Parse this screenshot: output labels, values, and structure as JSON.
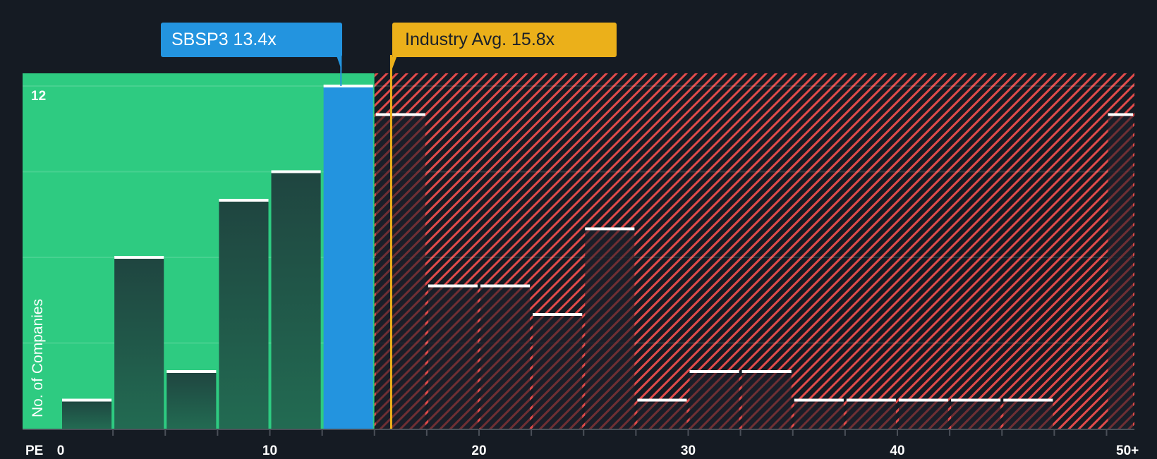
{
  "chart_data": {
    "type": "bar",
    "title": "",
    "xlabel": "PE",
    "ylabel": "No. of Companies",
    "ylim": [
      0,
      12
    ],
    "y_ticks_shown": [
      12
    ],
    "gridlines_every": 3,
    "x_tick_labels": [
      "0",
      "10",
      "20",
      "30",
      "40",
      "50+"
    ],
    "bin_width": 2.5,
    "bins": [
      {
        "from": 0,
        "to": 2.5,
        "count": 1
      },
      {
        "from": 2.5,
        "to": 5,
        "count": 6
      },
      {
        "from": 5,
        "to": 7.5,
        "count": 2
      },
      {
        "from": 7.5,
        "to": 10,
        "count": 8
      },
      {
        "from": 10,
        "to": 12.5,
        "count": 9
      },
      {
        "from": 12.5,
        "to": 15,
        "count": 12,
        "highlight": true
      },
      {
        "from": 15,
        "to": 17.5,
        "count": 11
      },
      {
        "from": 17.5,
        "to": 20,
        "count": 5
      },
      {
        "from": 20,
        "to": 22.5,
        "count": 5
      },
      {
        "from": 22.5,
        "to": 25,
        "count": 4
      },
      {
        "from": 25,
        "to": 27.5,
        "count": 7
      },
      {
        "from": 27.5,
        "to": 30,
        "count": 1
      },
      {
        "from": 30,
        "to": 32.5,
        "count": 2
      },
      {
        "from": 32.5,
        "to": 35,
        "count": 2
      },
      {
        "from": 35,
        "to": 37.5,
        "count": 1
      },
      {
        "from": 37.5,
        "to": 40,
        "count": 1
      },
      {
        "from": 40,
        "to": 42.5,
        "count": 1
      },
      {
        "from": 42.5,
        "to": 45,
        "count": 1
      },
      {
        "from": 45,
        "to": 47.5,
        "count": 1
      },
      {
        "from": 47.5,
        "to": 50,
        "count": 0
      },
      {
        "from": 50,
        "to": null,
        "label": "50+",
        "count": 11
      }
    ],
    "categories": [
      "0-2.5",
      "2.5-5",
      "5-7.5",
      "7.5-10",
      "10-12.5",
      "12.5-15",
      "15-17.5",
      "17.5-20",
      "20-22.5",
      "22.5-25",
      "25-27.5",
      "27.5-30",
      "30-32.5",
      "32.5-35",
      "35-37.5",
      "37.5-40",
      "40-42.5",
      "42.5-45",
      "45-47.5",
      "47.5-50",
      "50+"
    ],
    "values": [
      1,
      6,
      2,
      8,
      9,
      12,
      11,
      5,
      5,
      4,
      7,
      1,
      2,
      2,
      1,
      1,
      1,
      1,
      1,
      0,
      11
    ],
    "annotations": [
      {
        "label": "SBSP3 13.4x",
        "x": 13.4,
        "color": "#2394df"
      },
      {
        "label": "Industry Avg. 15.8x",
        "x": 15.8,
        "color": "#ebb01a"
      }
    ],
    "regions": [
      {
        "from": 0,
        "to": 15,
        "color": "#2ecb81",
        "meaning": "below/at company range"
      },
      {
        "from": 15,
        "to": "50+",
        "color": "#e14b4b",
        "pattern": "diagonal-hatch"
      }
    ]
  },
  "labels": {
    "company": "SBSP3 13.4x",
    "industry": "Industry Avg. 15.8x",
    "ylabel": "No. of Companies",
    "ytick_top": "12",
    "xaxis_name": "PE",
    "xticks": [
      "0",
      "10",
      "20",
      "30",
      "40",
      "50+"
    ]
  },
  "colors": {
    "background": "#151b23",
    "green_zone": "#2ecb81",
    "highlight_bar": "#2394df",
    "industry": "#ebb01a",
    "hatch": "#e14b4b",
    "bar_dark": "#1f4a41",
    "bar_top": "#ffffff"
  }
}
